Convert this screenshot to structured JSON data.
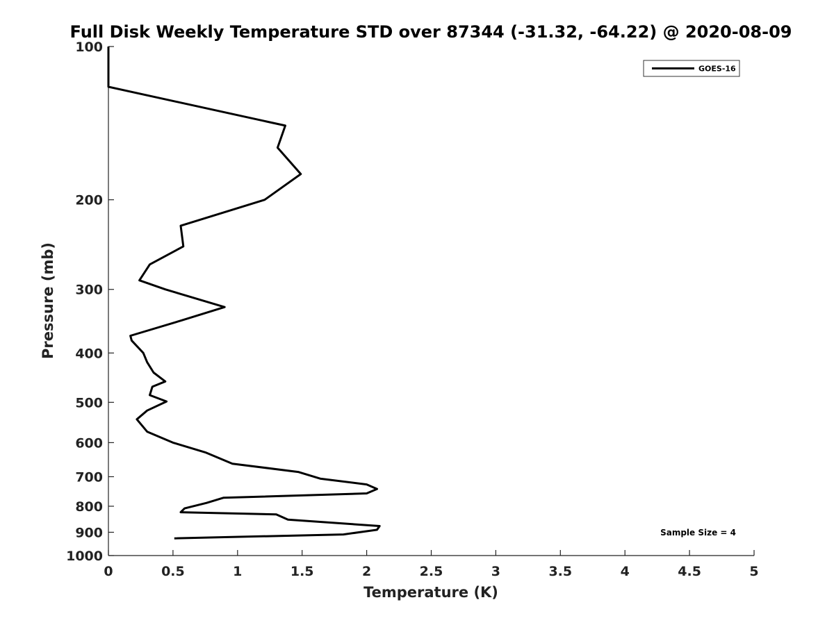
{
  "chart_data": {
    "type": "line",
    "title": "Full Disk Weekly Temperature STD over 87344 (-31.32, -64.22) @ 2020-08-09",
    "xlabel": "Temperature (K)",
    "ylabel": "Pressure (mb)",
    "xlim": [
      0,
      5
    ],
    "ylim": [
      100,
      1000
    ],
    "yscale": "log",
    "y_reversed": true,
    "xticks": [
      0,
      0.5,
      1,
      1.5,
      2,
      2.5,
      3,
      3.5,
      4,
      4.5,
      5
    ],
    "xtick_labels": [
      "0",
      "0.5",
      "1",
      "1.5",
      "2",
      "2.5",
      "3",
      "3.5",
      "4",
      "4.5",
      "5"
    ],
    "yticks": [
      100,
      200,
      300,
      400,
      500,
      600,
      700,
      800,
      900,
      1000
    ],
    "ytick_labels": [
      "100",
      "200",
      "300",
      "400",
      "500",
      "600",
      "700",
      "800",
      "900",
      "1000"
    ],
    "grid": false,
    "legend_position": "top-right",
    "annotation": "Sample Size = 4",
    "series": [
      {
        "name": "GOES-16",
        "color": "#000000",
        "x": [
          0.0,
          0.0,
          1.37,
          1.31,
          1.49,
          1.21,
          0.56,
          0.58,
          0.32,
          0.24,
          0.44,
          0.9,
          0.57,
          0.17,
          0.18,
          0.27,
          0.3,
          0.35,
          0.44,
          0.34,
          0.32,
          0.45,
          0.3,
          0.22,
          0.3,
          0.5,
          0.75,
          0.96,
          1.47,
          1.64,
          2.0,
          2.08,
          2.0,
          0.89,
          0.76,
          0.59,
          0.56,
          1.3,
          1.39,
          2.1,
          2.08,
          1.82,
          0.51
        ],
        "y": [
          100,
          120,
          143,
          158,
          178,
          200,
          225,
          247,
          268,
          288,
          300,
          325,
          345,
          370,
          378,
          400,
          417,
          437,
          455,
          466,
          484,
          498,
          519,
          540,
          571,
          600,
          627,
          660,
          685,
          706,
          725,
          740,
          755,
          770,
          788,
          808,
          822,
          830,
          850,
          875,
          890,
          909,
          925
        ]
      }
    ]
  }
}
